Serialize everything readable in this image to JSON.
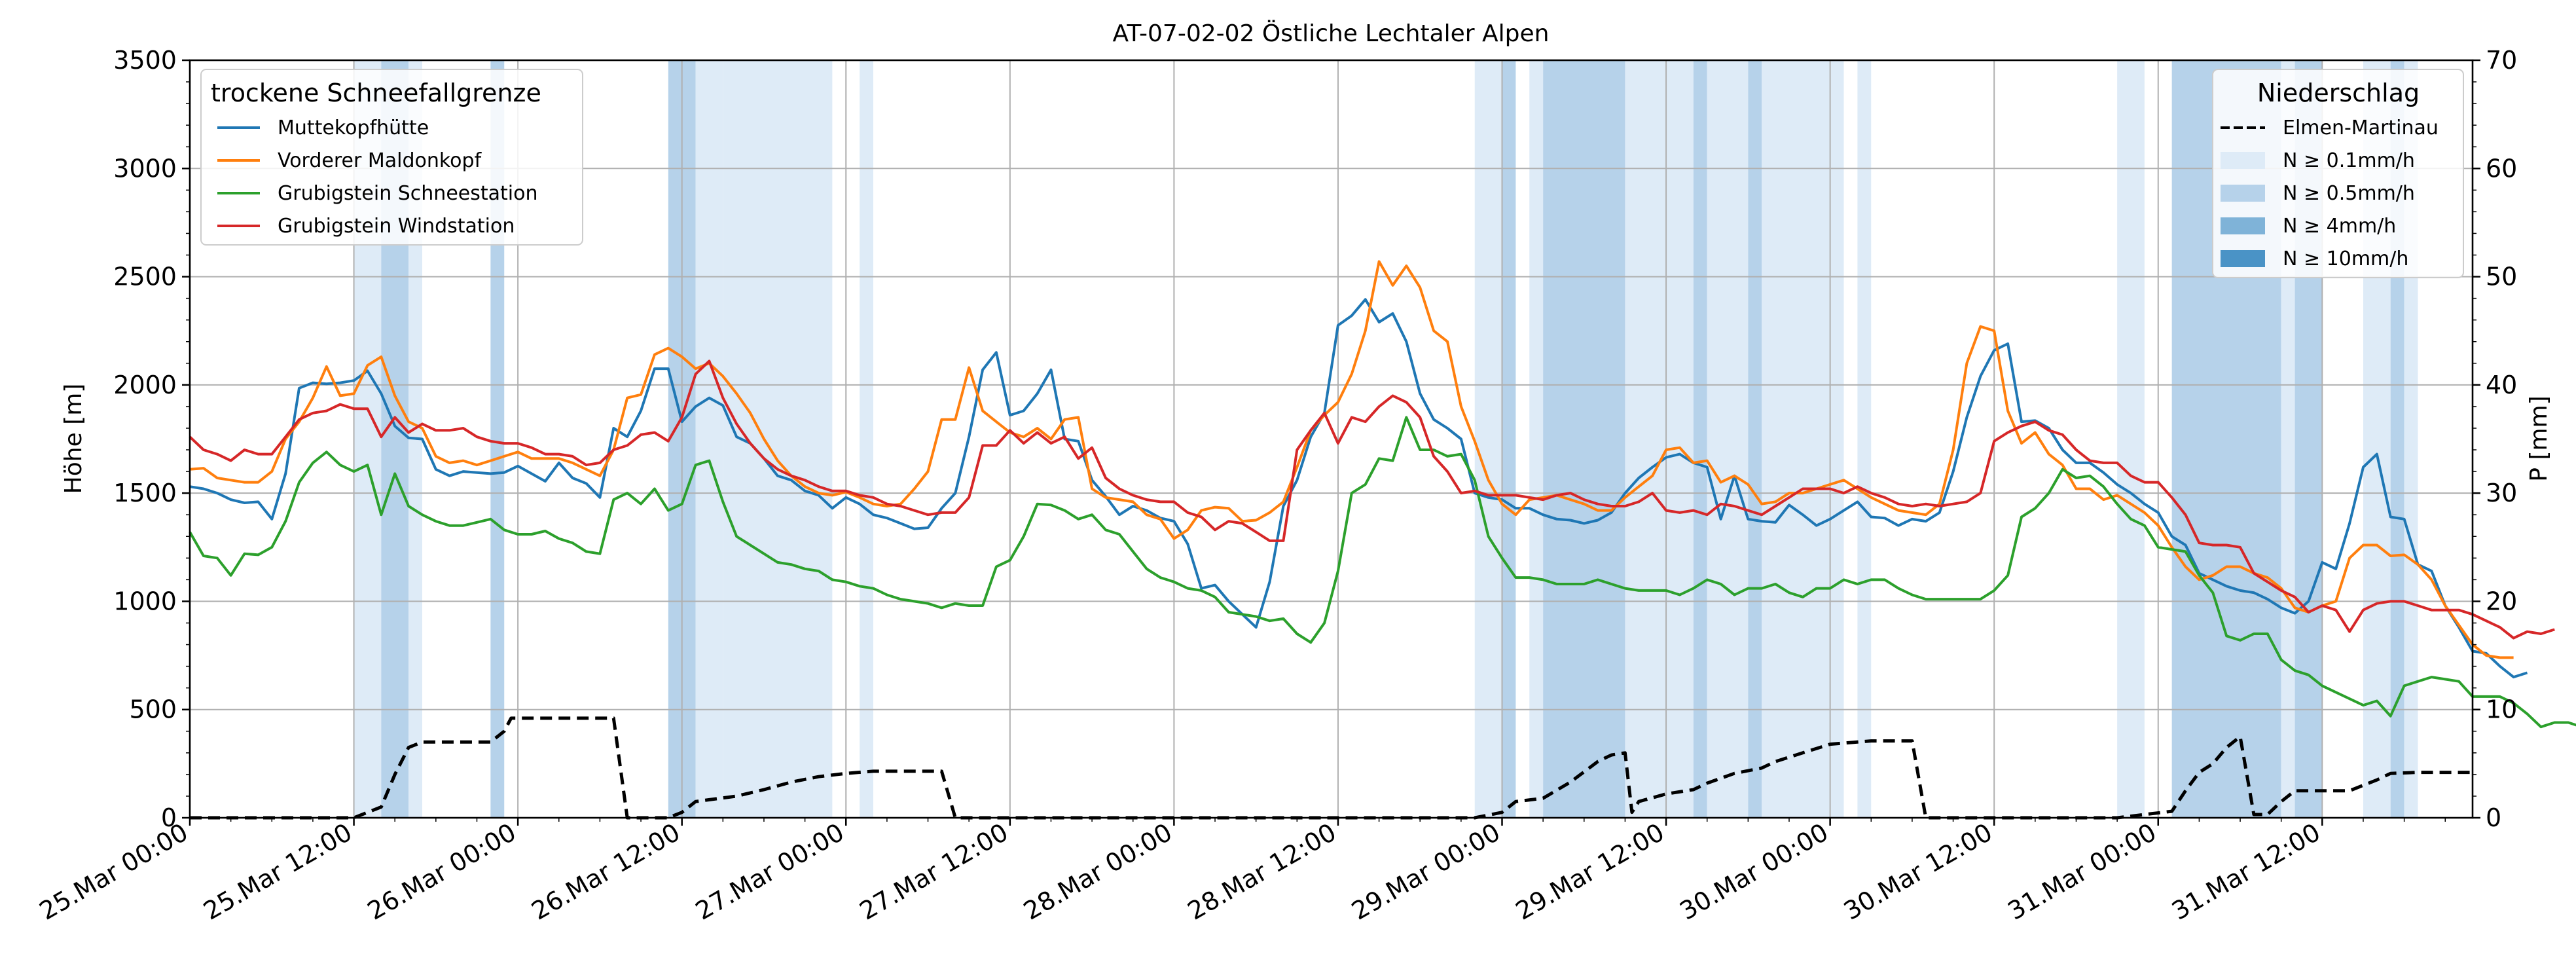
{
  "chart_data": {
    "type": "line",
    "title": "AT-07-02-02 Östliche Lechtaler Alpen",
    "ylabel_left": "Höhe [m]",
    "ylabel_right": "P [mm]",
    "ylim_left": [
      0,
      3500
    ],
    "ylim_right": [
      0,
      70
    ],
    "yticks_left": [
      "0",
      "500",
      "1000",
      "1500",
      "2000",
      "2500",
      "3000",
      "3500"
    ],
    "yticks_right": [
      "0",
      "10",
      "20",
      "30",
      "40",
      "50",
      "60",
      "70"
    ],
    "xlim_hours": [
      0,
      167
    ],
    "xtick_labels": [
      "25.Mar 00:00",
      "25.Mar 12:00",
      "26.Mar 00:00",
      "26.Mar 12:00",
      "27.Mar 00:00",
      "27.Mar 12:00",
      "28.Mar 00:00",
      "28.Mar 12:00",
      "29.Mar 00:00",
      "29.Mar 12:00",
      "30.Mar 00:00",
      "30.Mar 12:00",
      "31.Mar 00:00",
      "31.Mar 12:00"
    ],
    "grid": true,
    "legend_left": {
      "title": "trockene Schneefallgrenze",
      "placement": "top-left",
      "entries": [
        "Muttekopfhütte",
        "Vorderer Maldonkopf",
        "Grubigstein Schneestation",
        "Grubigstein Windstation"
      ]
    },
    "legend_right": {
      "title": "Niederschlag",
      "placement": "top-right",
      "entries": [
        "Elmen-Martinau",
        "N ≥ 0.1mm/h",
        "N ≥ 0.5mm/h",
        "N ≥ 4mm/h",
        "N ≥ 10mm/h"
      ]
    },
    "precip_intervals": [
      {
        "start": 12,
        "end": 14,
        "level": 1
      },
      {
        "start": 14,
        "end": 16,
        "level": 2
      },
      {
        "start": 16,
        "end": 17,
        "level": 1
      },
      {
        "start": 22,
        "end": 23,
        "level": 2
      },
      {
        "start": 35,
        "end": 37,
        "level": 2
      },
      {
        "start": 37,
        "end": 39,
        "level": 1
      },
      {
        "start": 39,
        "end": 47,
        "level": 1
      },
      {
        "start": 49,
        "end": 50,
        "level": 1
      },
      {
        "start": 94,
        "end": 96,
        "level": 1
      },
      {
        "start": 96,
        "end": 97,
        "level": 2
      },
      {
        "start": 98,
        "end": 99,
        "level": 1
      },
      {
        "start": 99,
        "end": 105,
        "level": 2
      },
      {
        "start": 105,
        "end": 110,
        "level": 1
      },
      {
        "start": 110,
        "end": 111,
        "level": 2
      },
      {
        "start": 111,
        "end": 114,
        "level": 1
      },
      {
        "start": 114,
        "end": 115,
        "level": 2
      },
      {
        "start": 115,
        "end": 121,
        "level": 1
      },
      {
        "start": 122,
        "end": 123,
        "level": 1
      },
      {
        "start": 141,
        "end": 143,
        "level": 1
      },
      {
        "start": 145,
        "end": 153,
        "level": 2
      },
      {
        "start": 153,
        "end": 154,
        "level": 1
      },
      {
        "start": 154,
        "end": 156,
        "level": 2
      },
      {
        "start": 159,
        "end": 161,
        "level": 1
      },
      {
        "start": 161,
        "end": 162,
        "level": 2
      },
      {
        "start": 162,
        "end": 163,
        "level": 1
      }
    ],
    "series": [
      {
        "name": "Muttekopfhütte",
        "color": "#1f77b4",
        "axis": "left",
        "x_start_hour": 0,
        "values": [
          1530,
          1520,
          1500,
          1470,
          1455,
          1460,
          1380,
          1590,
          1985,
          2010,
          2005,
          2010,
          2020,
          2065,
          1960,
          1810,
          1755,
          1750,
          1610,
          1580,
          1600,
          1595,
          1590,
          1595,
          1625,
          1590,
          1555,
          1640,
          1570,
          1545,
          1480,
          1800,
          1760,
          1880,
          2075,
          2075,
          1830,
          1900,
          1940,
          1905,
          1760,
          1730,
          1660,
          1580,
          1560,
          1510,
          1490,
          1430,
          1480,
          1450,
          1400,
          1385,
          1360,
          1335,
          1340,
          1430,
          1500,
          1760,
          2070,
          2150,
          1860,
          1880,
          1960,
          2070,
          1750,
          1740,
          1560,
          1485,
          1400,
          1440,
          1420,
          1385,
          1370,
          1265,
          1060,
          1075,
          1000,
          940,
          880,
          1090,
          1440,
          1560,
          1760,
          1870,
          2275,
          2320,
          2395,
          2290,
          2330,
          2200,
          1960,
          1840,
          1800,
          1750,
          1500,
          1480,
          1470,
          1430,
          1430,
          1400,
          1380,
          1375,
          1360,
          1375,
          1410,
          1500,
          1570,
          1620,
          1665,
          1680,
          1640,
          1620,
          1380,
          1580,
          1380,
          1370,
          1365,
          1445,
          1400,
          1350,
          1380,
          1420,
          1460,
          1390,
          1385,
          1350,
          1380,
          1370,
          1410,
          1600,
          1850,
          2040,
          2160,
          2190,
          1830,
          1835,
          1800,
          1700,
          1640,
          1640,
          1595,
          1540,
          1500,
          1450,
          1410,
          1300,
          1260,
          1130,
          1100,
          1070,
          1050,
          1040,
          1010,
          970,
          945,
          1000,
          1180,
          1150,
          1360,
          1620,
          1680,
          1390,
          1380,
          1170,
          1140,
          980,
          880,
          770,
          760,
          700,
          650,
          670
        ]
      },
      {
        "name": "Vorderer Maldonkopf",
        "color": "#ff7f0e",
        "axis": "left",
        "x_start_hour": 0,
        "values": [
          1610,
          1615,
          1570,
          1560,
          1550,
          1550,
          1600,
          1750,
          1830,
          1940,
          2085,
          1950,
          1960,
          2090,
          2130,
          1950,
          1830,
          1800,
          1670,
          1640,
          1650,
          1630,
          1650,
          1670,
          1690,
          1660,
          1660,
          1660,
          1640,
          1610,
          1580,
          1700,
          1940,
          1955,
          2140,
          2170,
          2130,
          2075,
          2100,
          2040,
          1960,
          1870,
          1750,
          1650,
          1580,
          1530,
          1500,
          1490,
          1505,
          1480,
          1450,
          1440,
          1450,
          1520,
          1600,
          1840,
          1840,
          2080,
          1880,
          1830,
          1780,
          1760,
          1800,
          1750,
          1840,
          1850,
          1520,
          1480,
          1470,
          1460,
          1400,
          1380,
          1290,
          1330,
          1420,
          1435,
          1430,
          1370,
          1375,
          1410,
          1460,
          1620,
          1790,
          1860,
          1920,
          2050,
          2250,
          2570,
          2460,
          2550,
          2450,
          2250,
          2200,
          1900,
          1740,
          1560,
          1450,
          1400,
          1470,
          1480,
          1490,
          1470,
          1450,
          1420,
          1420,
          1480,
          1530,
          1580,
          1700,
          1710,
          1640,
          1650,
          1550,
          1580,
          1540,
          1450,
          1460,
          1500,
          1500,
          1520,
          1540,
          1560,
          1520,
          1480,
          1450,
          1420,
          1410,
          1400,
          1450,
          1700,
          2100,
          2270,
          2250,
          1880,
          1730,
          1780,
          1680,
          1630,
          1520,
          1520,
          1470,
          1490,
          1450,
          1410,
          1350,
          1250,
          1160,
          1100,
          1120,
          1160,
          1160,
          1130,
          1110,
          1060,
          970,
          950,
          980,
          1000,
          1200,
          1260,
          1260,
          1210,
          1215,
          1170,
          1100,
          980,
          890,
          800,
          750,
          740,
          740
        ]
      },
      {
        "name": "Grubigstein Schneestation",
        "color": "#2ca02c",
        "axis": "left",
        "x_start_hour": 0,
        "values": [
          1320,
          1210,
          1200,
          1120,
          1220,
          1215,
          1250,
          1370,
          1550,
          1640,
          1690,
          1630,
          1600,
          1630,
          1400,
          1590,
          1440,
          1400,
          1370,
          1350,
          1350,
          1365,
          1380,
          1330,
          1310,
          1310,
          1325,
          1290,
          1270,
          1230,
          1220,
          1470,
          1500,
          1450,
          1520,
          1420,
          1450,
          1630,
          1650,
          1460,
          1300,
          1260,
          1220,
          1180,
          1170,
          1150,
          1140,
          1100,
          1090,
          1070,
          1060,
          1030,
          1010,
          1000,
          990,
          970,
          990,
          980,
          980,
          1160,
          1190,
          1300,
          1450,
          1445,
          1420,
          1380,
          1400,
          1330,
          1310,
          1230,
          1150,
          1110,
          1090,
          1060,
          1050,
          1020,
          950,
          940,
          930,
          910,
          920,
          850,
          810,
          900,
          1140,
          1500,
          1540,
          1660,
          1650,
          1850,
          1700,
          1700,
          1670,
          1680,
          1560,
          1300,
          1200,
          1110,
          1110,
          1100,
          1080,
          1080,
          1080,
          1100,
          1080,
          1060,
          1050,
          1050,
          1050,
          1030,
          1060,
          1100,
          1080,
          1030,
          1060,
          1060,
          1080,
          1040,
          1020,
          1060,
          1060,
          1100,
          1080,
          1100,
          1100,
          1060,
          1030,
          1010,
          1010,
          1010,
          1010,
          1010,
          1050,
          1120,
          1390,
          1430,
          1500,
          1610,
          1570,
          1580,
          1530,
          1450,
          1380,
          1350,
          1250,
          1240,
          1230,
          1120,
          1040,
          840,
          820,
          850,
          850,
          730,
          680,
          660,
          610,
          580,
          550,
          520,
          540,
          470,
          610,
          630,
          650,
          640,
          630,
          560,
          560,
          560,
          530,
          480,
          420,
          440,
          440,
          420
        ]
      },
      {
        "name": "Grubigstein Windstation",
        "color": "#d62728",
        "axis": "left",
        "x_start_hour": 0,
        "values": [
          1760,
          1700,
          1680,
          1650,
          1700,
          1680,
          1680,
          1760,
          1840,
          1870,
          1880,
          1910,
          1890,
          1890,
          1760,
          1850,
          1780,
          1820,
          1790,
          1790,
          1800,
          1760,
          1740,
          1730,
          1730,
          1710,
          1680,
          1680,
          1670,
          1630,
          1640,
          1700,
          1720,
          1770,
          1780,
          1740,
          1850,
          2050,
          2110,
          1940,
          1820,
          1730,
          1660,
          1610,
          1580,
          1560,
          1530,
          1510,
          1510,
          1490,
          1480,
          1450,
          1440,
          1420,
          1400,
          1410,
          1410,
          1480,
          1720,
          1720,
          1790,
          1730,
          1780,
          1730,
          1760,
          1660,
          1710,
          1570,
          1520,
          1490,
          1470,
          1460,
          1460,
          1410,
          1390,
          1330,
          1370,
          1360,
          1320,
          1280,
          1280,
          1700,
          1790,
          1870,
          1730,
          1850,
          1830,
          1900,
          1950,
          1920,
          1850,
          1670,
          1600,
          1500,
          1510,
          1490,
          1490,
          1490,
          1480,
          1470,
          1490,
          1500,
          1470,
          1450,
          1440,
          1440,
          1460,
          1500,
          1420,
          1410,
          1420,
          1400,
          1450,
          1440,
          1420,
          1400,
          1440,
          1480,
          1520,
          1520,
          1520,
          1500,
          1530,
          1500,
          1480,
          1450,
          1440,
          1450,
          1440,
          1450,
          1460,
          1500,
          1740,
          1780,
          1810,
          1830,
          1790,
          1770,
          1700,
          1650,
          1640,
          1640,
          1580,
          1550,
          1550,
          1480,
          1400,
          1270,
          1260,
          1260,
          1250,
          1130,
          1090,
          1050,
          1020,
          950,
          980,
          960,
          860,
          960,
          990,
          1000,
          1000,
          980,
          960,
          960,
          960,
          940,
          910,
          880,
          830,
          860,
          850,
          870
        ]
      },
      {
        "name": "Elmen-Martinau",
        "color": "#000000",
        "axis": "right",
        "dashed": true,
        "points": [
          [
            0,
            0
          ],
          [
            12,
            0
          ],
          [
            14,
            1
          ],
          [
            15,
            4
          ],
          [
            16,
            6.5
          ],
          [
            17,
            7
          ],
          [
            22,
            7
          ],
          [
            23,
            8
          ],
          [
            23.5,
            9.2
          ],
          [
            31,
            9.2
          ],
          [
            32,
            0
          ],
          [
            35,
            0
          ],
          [
            36,
            0.5
          ],
          [
            37,
            1.5
          ],
          [
            40,
            2
          ],
          [
            42,
            2.6
          ],
          [
            44,
            3.3
          ],
          [
            46,
            3.8
          ],
          [
            48,
            4.1
          ],
          [
            50,
            4.3
          ],
          [
            55,
            4.3
          ],
          [
            56,
            0
          ],
          [
            94,
            0
          ],
          [
            96,
            0.5
          ],
          [
            97,
            1.5
          ],
          [
            99,
            1.8
          ],
          [
            101,
            3.3
          ],
          [
            103,
            5.2
          ],
          [
            104,
            5.8
          ],
          [
            105,
            6
          ],
          [
            105.5,
            0.5
          ],
          [
            106,
            1.5
          ],
          [
            108,
            2.2
          ],
          [
            110,
            2.6
          ],
          [
            111,
            3.2
          ],
          [
            113,
            4.1
          ],
          [
            115,
            4.6
          ],
          [
            116,
            5.2
          ],
          [
            118,
            6
          ],
          [
            120,
            6.8
          ],
          [
            123,
            7.1
          ],
          [
            126,
            7.1
          ],
          [
            127,
            0
          ],
          [
            141,
            0
          ],
          [
            143,
            0.3
          ],
          [
            145,
            0.6
          ],
          [
            146,
            2.5
          ],
          [
            147,
            4.2
          ],
          [
            148,
            5
          ],
          [
            149,
            6.5
          ],
          [
            150,
            7.5
          ],
          [
            151,
            0.3
          ],
          [
            152,
            0.3
          ],
          [
            153,
            1.5
          ],
          [
            154,
            2.5
          ],
          [
            158,
            2.5
          ],
          [
            159,
            3
          ],
          [
            160,
            3.5
          ],
          [
            161,
            4.1
          ],
          [
            163,
            4.2
          ],
          [
            167,
            4.2
          ]
        ]
      }
    ],
    "colors": {
      "precip_level_1": "#deebf7",
      "precip_level_2": "#b6d2ea",
      "precip_level_3": "#7fb3d8",
      "precip_level_4": "#4a93c6",
      "grid": "#b0b0b0"
    }
  }
}
